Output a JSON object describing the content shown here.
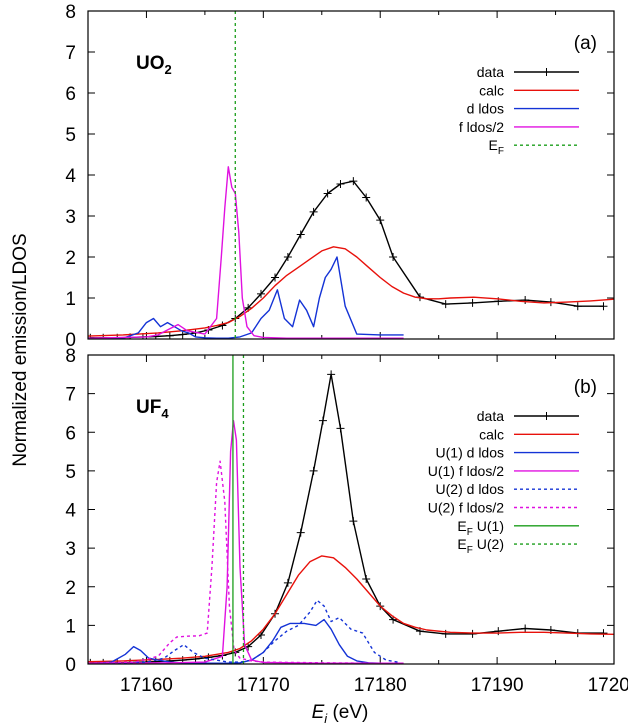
{
  "ylabel": "Normalized emission/LDOS",
  "xlabel_main": "E",
  "xlabel_sub": "i",
  "xlabel_unit": " (eV)",
  "chart_data": [
    {
      "type": "line",
      "panel_label": "(a)",
      "compound": {
        "main": "UO",
        "sub": "2"
      },
      "xlim": [
        17155,
        17200
      ],
      "ylim": [
        0,
        8
      ],
      "xticks": [
        17160,
        17170,
        17180,
        17190,
        17200
      ],
      "yticks": [
        0,
        1,
        2,
        3,
        4,
        5,
        6,
        7,
        8
      ],
      "legend_position": "top-right",
      "series": [
        {
          "name": "data",
          "style": "line+plus",
          "color": "#000000",
          "dash": "",
          "x": [
            17155.2,
            17156.3,
            17157.5,
            17158.6,
            17159.7,
            17160.8,
            17162,
            17163.1,
            17164.2,
            17165.3,
            17166.5,
            17167.6,
            17168.7,
            17169.8,
            17171,
            17172.1,
            17173.2,
            17174.3,
            17175.5,
            17176.6,
            17177.7,
            17178.8,
            17180,
            17181.1,
            17183.4,
            17185.6,
            17187.9,
            17190.1,
            17192.4,
            17194.6,
            17196.9,
            17199.1
          ],
          "y": [
            0.03,
            0.03,
            0.03,
            0.04,
            0.05,
            0.06,
            0.08,
            0.11,
            0.15,
            0.22,
            0.33,
            0.5,
            0.76,
            1.1,
            1.5,
            2.0,
            2.55,
            3.1,
            3.55,
            3.78,
            3.85,
            3.45,
            2.9,
            2.0,
            1.02,
            0.85,
            0.88,
            0.92,
            0.95,
            0.9,
            0.8,
            0.8
          ]
        },
        {
          "name": "calc",
          "style": "line",
          "color": "#e8110b",
          "dash": "",
          "x": [
            17155,
            17158,
            17161,
            17163,
            17165,
            17166,
            17167,
            17168,
            17169,
            17170,
            17171,
            17172,
            17173,
            17174,
            17175,
            17176,
            17177,
            17178,
            17179,
            17180,
            17181,
            17182,
            17183,
            17184,
            17185,
            17186,
            17188,
            17190,
            17192,
            17194,
            17196,
            17198,
            17200
          ],
          "y": [
            0.07,
            0.1,
            0.15,
            0.2,
            0.27,
            0.33,
            0.4,
            0.55,
            0.75,
            1.0,
            1.3,
            1.55,
            1.75,
            1.95,
            2.15,
            2.25,
            2.2,
            2.0,
            1.75,
            1.5,
            1.28,
            1.12,
            1.02,
            0.98,
            0.98,
            1.0,
            1.02,
            0.98,
            0.92,
            0.88,
            0.9,
            0.93,
            0.97
          ]
        },
        {
          "name": "d ldos",
          "style": "line",
          "color": "#1433d6",
          "dash": "",
          "x": [
            17155,
            17158,
            17159.3,
            17160,
            17160.6,
            17161.2,
            17161.8,
            17162.4,
            17163,
            17163.6,
            17164.2,
            17165,
            17166,
            17167,
            17168,
            17169,
            17169.8,
            17170.5,
            17171.2,
            17171.8,
            17172.5,
            17173.1,
            17173.7,
            17174.3,
            17174.8,
            17175.3,
            17175.8,
            17176.3,
            17177,
            17178,
            17180,
            17182
          ],
          "y": [
            0,
            0.02,
            0.15,
            0.4,
            0.5,
            0.3,
            0.4,
            0.3,
            0.2,
            0.15,
            0.05,
            0.03,
            0.02,
            0.02,
            0.05,
            0.15,
            0.5,
            0.7,
            1.2,
            0.5,
            0.3,
            0.95,
            0.7,
            0.3,
            1.0,
            1.5,
            1.7,
            2.0,
            0.8,
            0.12,
            0.1,
            0.1
          ]
        },
        {
          "name": "f ldos/2",
          "style": "line",
          "color": "#e011e0",
          "dash": "",
          "x": [
            17155,
            17160,
            17161,
            17162,
            17162.7,
            17163.5,
            17165,
            17166,
            17166.4,
            17166.7,
            17167,
            17167.3,
            17167.6,
            17167.9,
            17168.2,
            17168.6,
            17169.2,
            17170,
            17172,
            17175,
            17180,
            17182
          ],
          "y": [
            0.02,
            0.05,
            0.1,
            0.25,
            0.35,
            0.2,
            0.12,
            0.5,
            2.0,
            3.2,
            4.2,
            3.7,
            3.55,
            2.6,
            1.0,
            0.3,
            0.08,
            0.04,
            0.02,
            0.02,
            0.02,
            0.02
          ]
        },
        {
          "name": "E_F",
          "style": "vline",
          "color": "#1b9e1b",
          "dash": "3,3",
          "x": [
            17167.6
          ]
        }
      ]
    },
    {
      "type": "line",
      "panel_label": "(b)",
      "compound": {
        "main": "UF",
        "sub": "4"
      },
      "xlim": [
        17155,
        17200
      ],
      "ylim": [
        0,
        8
      ],
      "xticks": [
        17160,
        17170,
        17180,
        17190,
        17200
      ],
      "yticks": [
        0,
        1,
        2,
        3,
        4,
        5,
        6,
        7,
        8
      ],
      "legend_position": "top-right",
      "series": [
        {
          "name": "data",
          "style": "line+plus",
          "color": "#000000",
          "dash": "",
          "x": [
            17155.2,
            17156.3,
            17157.5,
            17158.6,
            17159.7,
            17160.8,
            17162,
            17163.1,
            17164.2,
            17165.3,
            17166.5,
            17167.6,
            17168.7,
            17169.8,
            17171,
            17172.1,
            17173.2,
            17174.3,
            17175.1,
            17175.8,
            17176.6,
            17177.7,
            17178.8,
            17180,
            17181.1,
            17183.4,
            17185.6,
            17187.9,
            17190.1,
            17192.4,
            17194.6,
            17196.9,
            17199.1
          ],
          "y": [
            0.03,
            0.03,
            0.03,
            0.04,
            0.05,
            0.06,
            0.08,
            0.1,
            0.13,
            0.17,
            0.22,
            0.3,
            0.45,
            0.75,
            1.3,
            2.1,
            3.4,
            5.0,
            6.3,
            7.5,
            6.1,
            3.7,
            2.2,
            1.5,
            1.15,
            0.85,
            0.78,
            0.78,
            0.85,
            0.92,
            0.88,
            0.8,
            0.8
          ]
        },
        {
          "name": "calc",
          "style": "line",
          "color": "#e8110b",
          "dash": "",
          "x": [
            17155,
            17158,
            17161,
            17163,
            17165,
            17167,
            17168,
            17169,
            17170,
            17171,
            17172,
            17173,
            17174,
            17175,
            17176,
            17177,
            17178,
            17179,
            17180,
            17181,
            17182,
            17183,
            17184,
            17186,
            17188,
            17190,
            17192,
            17194,
            17196,
            17198,
            17200
          ],
          "y": [
            0.06,
            0.08,
            0.12,
            0.15,
            0.2,
            0.3,
            0.4,
            0.6,
            0.9,
            1.3,
            1.8,
            2.3,
            2.65,
            2.8,
            2.75,
            2.5,
            2.2,
            1.85,
            1.5,
            1.25,
            1.05,
            0.95,
            0.88,
            0.82,
            0.8,
            0.8,
            0.82,
            0.82,
            0.8,
            0.78,
            0.77
          ]
        },
        {
          "name": "U(1) d ldos",
          "style": "line",
          "color": "#1433d6",
          "dash": "",
          "x": [
            17155,
            17157,
            17158.2,
            17158.9,
            17159.5,
            17160.2,
            17161,
            17162,
            17163,
            17164,
            17165,
            17166,
            17167,
            17168,
            17169,
            17170,
            17170.8,
            17171.5,
            17172.3,
            17173.5,
            17174.5,
            17175.2,
            17175.8,
            17176.5,
            17177.2,
            17178,
            17179,
            17180
          ],
          "y": [
            0,
            0.05,
            0.25,
            0.45,
            0.35,
            0.15,
            0.1,
            0.05,
            0.03,
            0.02,
            0.02,
            0.02,
            0.02,
            0.03,
            0.1,
            0.3,
            0.6,
            0.95,
            1.05,
            1.05,
            1.0,
            1.15,
            0.9,
            0.5,
            0.2,
            0.08,
            0.03,
            0.02
          ]
        },
        {
          "name": "U(1) f ldos/2",
          "style": "line",
          "color": "#e011e0",
          "dash": "",
          "x": [
            17155,
            17162,
            17165,
            17166.5,
            17166.9,
            17167.2,
            17167.45,
            17167.7,
            17168,
            17168.4,
            17169,
            17170,
            17175,
            17180,
            17182
          ],
          "y": [
            0.02,
            0.03,
            0.05,
            0.2,
            2.0,
            5.5,
            6.3,
            5.8,
            2.5,
            0.5,
            0.1,
            0.04,
            0.02,
            0.02,
            0.02
          ]
        },
        {
          "name": "U(2) d ldos",
          "style": "line",
          "color": "#1433d6",
          "dash": "3,3",
          "x": [
            17155,
            17160,
            17161.5,
            17162.4,
            17163.2,
            17164,
            17165,
            17166,
            17167,
            17168,
            17169,
            17170,
            17171,
            17172,
            17173,
            17174,
            17174.6,
            17175.2,
            17175.8,
            17176.5,
            17177.5,
            17178.5,
            17179.5,
            17180.5,
            17181.5
          ],
          "y": [
            0,
            0.05,
            0.15,
            0.35,
            0.5,
            0.3,
            0.15,
            0.1,
            0.05,
            0.05,
            0.1,
            0.3,
            0.6,
            0.85,
            1.0,
            1.35,
            1.65,
            1.5,
            1.1,
            1.2,
            0.9,
            0.8,
            0.3,
            0.1,
            0.05
          ]
        },
        {
          "name": "U(2) f ldos/2",
          "style": "line",
          "color": "#e011e0",
          "dash": "3,3",
          "x": [
            17155,
            17159,
            17161,
            17162,
            17162.6,
            17163.5,
            17164.5,
            17165.2,
            17165.6,
            17166,
            17166.3,
            17166.7,
            17167.1,
            17167.5,
            17168,
            17169,
            17170,
            17175,
            17180
          ],
          "y": [
            0.02,
            0.05,
            0.2,
            0.55,
            0.7,
            0.72,
            0.73,
            0.8,
            2.5,
            4.7,
            5.25,
            4.2,
            1.5,
            0.35,
            0.15,
            0.08,
            0.05,
            0.03,
            0.02
          ]
        },
        {
          "name": "E_F U(1)",
          "style": "vline",
          "color": "#1b9e1b",
          "dash": "",
          "x": [
            17167.4
          ]
        },
        {
          "name": "E_F U(2)",
          "style": "vline",
          "color": "#1b9e1b",
          "dash": "3,3",
          "x": [
            17168.3
          ]
        }
      ]
    }
  ]
}
